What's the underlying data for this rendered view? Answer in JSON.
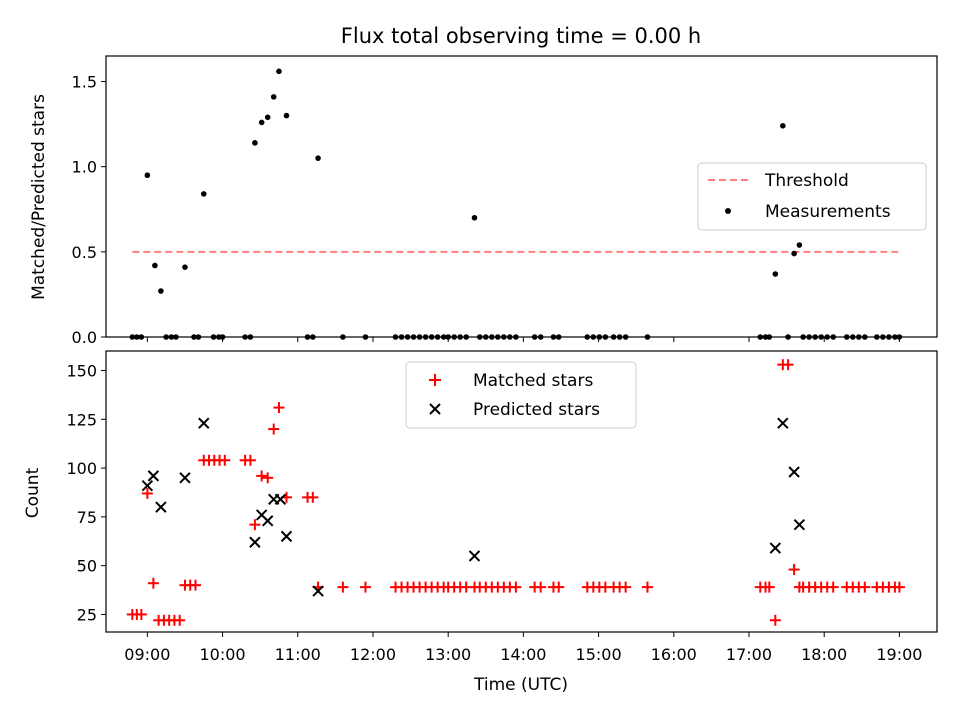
{
  "chart_data": [
    {
      "type": "scatter",
      "title": "Flux total observing time = 0.00 h",
      "xlabel": "",
      "ylabel": "Matched/Predicted stars",
      "xlim": [
        8.45,
        19.5
      ],
      "ylim": [
        0,
        1.65
      ],
      "yticks": [
        0.0,
        0.5,
        1.0,
        1.5
      ],
      "ytick_labels": [
        "0.0",
        "0.5",
        "1.0",
        "1.5"
      ],
      "grid": false,
      "legend_position": "center-right",
      "threshold": {
        "name": "Threshold",
        "y": 0.5,
        "x_range": [
          8.8,
          19.0
        ],
        "color": "#ff7f7f",
        "style": "dashed"
      },
      "series": [
        {
          "name": "Measurements",
          "color": "#000000",
          "marker": "dot",
          "points": [
            [
              8.8,
              0.0
            ],
            [
              8.86,
              0.0
            ],
            [
              8.92,
              0.0
            ],
            [
              9.0,
              0.95
            ],
            [
              9.1,
              0.42
            ],
            [
              9.18,
              0.27
            ],
            [
              9.25,
              0.0
            ],
            [
              9.32,
              0.0
            ],
            [
              9.38,
              0.0
            ],
            [
              9.5,
              0.41
            ],
            [
              9.62,
              0.0
            ],
            [
              9.68,
              0.0
            ],
            [
              9.75,
              0.84
            ],
            [
              9.88,
              0.0
            ],
            [
              9.95,
              0.0
            ],
            [
              10.0,
              0.0
            ],
            [
              10.3,
              0.0
            ],
            [
              10.37,
              0.0
            ],
            [
              10.43,
              1.14
            ],
            [
              10.52,
              1.26
            ],
            [
              10.6,
              1.29
            ],
            [
              10.68,
              1.41
            ],
            [
              10.75,
              1.56
            ],
            [
              10.85,
              1.3
            ],
            [
              11.13,
              0.0
            ],
            [
              11.2,
              0.0
            ],
            [
              11.27,
              1.05
            ],
            [
              11.6,
              0.0
            ],
            [
              11.9,
              0.0
            ],
            [
              12.3,
              0.0
            ],
            [
              12.38,
              0.0
            ],
            [
              12.46,
              0.0
            ],
            [
              12.54,
              0.0
            ],
            [
              12.62,
              0.0
            ],
            [
              12.7,
              0.0
            ],
            [
              12.78,
              0.0
            ],
            [
              12.86,
              0.0
            ],
            [
              12.94,
              0.0
            ],
            [
              13.0,
              0.0
            ],
            [
              13.08,
              0.0
            ],
            [
              13.16,
              0.0
            ],
            [
              13.24,
              0.0
            ],
            [
              13.35,
              0.7
            ],
            [
              13.42,
              0.0
            ],
            [
              13.5,
              0.0
            ],
            [
              13.58,
              0.0
            ],
            [
              13.66,
              0.0
            ],
            [
              13.74,
              0.0
            ],
            [
              13.82,
              0.0
            ],
            [
              13.9,
              0.0
            ],
            [
              14.15,
              0.0
            ],
            [
              14.23,
              0.0
            ],
            [
              14.4,
              0.0
            ],
            [
              14.47,
              0.0
            ],
            [
              14.85,
              0.0
            ],
            [
              14.93,
              0.0
            ],
            [
              15.01,
              0.0
            ],
            [
              15.09,
              0.0
            ],
            [
              15.2,
              0.0
            ],
            [
              15.28,
              0.0
            ],
            [
              15.36,
              0.0
            ],
            [
              15.65,
              0.0
            ],
            [
              17.15,
              0.0
            ],
            [
              17.22,
              0.0
            ],
            [
              17.27,
              0.0
            ],
            [
              17.35,
              0.37
            ],
            [
              17.45,
              1.24
            ],
            [
              17.52,
              0.0
            ],
            [
              17.6,
              0.49
            ],
            [
              17.67,
              0.54
            ],
            [
              17.72,
              0.0
            ],
            [
              17.8,
              0.0
            ],
            [
              17.88,
              0.0
            ],
            [
              17.96,
              0.0
            ],
            [
              18.04,
              0.0
            ],
            [
              18.12,
              0.0
            ],
            [
              18.3,
              0.0
            ],
            [
              18.38,
              0.0
            ],
            [
              18.46,
              0.0
            ],
            [
              18.54,
              0.0
            ],
            [
              18.7,
              0.0
            ],
            [
              18.78,
              0.0
            ],
            [
              18.86,
              0.0
            ],
            [
              18.94,
              0.0
            ],
            [
              19.0,
              0.0
            ]
          ]
        }
      ]
    },
    {
      "type": "scatter",
      "title": "",
      "xlabel": "Time (UTC)",
      "ylabel": "Count",
      "xlim": [
        8.45,
        19.5
      ],
      "ylim": [
        16,
        160
      ],
      "xticks": [
        9,
        10,
        11,
        12,
        13,
        14,
        15,
        16,
        17,
        18,
        19
      ],
      "xtick_labels": [
        "09:00",
        "10:00",
        "11:00",
        "12:00",
        "13:00",
        "14:00",
        "15:00",
        "16:00",
        "17:00",
        "18:00",
        "19:00"
      ],
      "yticks": [
        25,
        50,
        75,
        100,
        125,
        150
      ],
      "ytick_labels": [
        "25",
        "50",
        "75",
        "100",
        "125",
        "150"
      ],
      "grid": false,
      "legend_position": "upper-center",
      "series": [
        {
          "name": "Matched stars",
          "color": "#ff0000",
          "marker": "plus",
          "points": [
            [
              8.8,
              25
            ],
            [
              8.86,
              25
            ],
            [
              8.92,
              25
            ],
            [
              9.0,
              87
            ],
            [
              9.08,
              41
            ],
            [
              9.15,
              22
            ],
            [
              9.22,
              22
            ],
            [
              9.29,
              22
            ],
            [
              9.36,
              22
            ],
            [
              9.43,
              22
            ],
            [
              9.5,
              40
            ],
            [
              9.57,
              40
            ],
            [
              9.64,
              40
            ],
            [
              9.75,
              104
            ],
            [
              9.82,
              104
            ],
            [
              9.89,
              104
            ],
            [
              9.96,
              104
            ],
            [
              10.03,
              104
            ],
            [
              10.3,
              104
            ],
            [
              10.37,
              104
            ],
            [
              10.43,
              71
            ],
            [
              10.52,
              96
            ],
            [
              10.6,
              95
            ],
            [
              10.68,
              120
            ],
            [
              10.75,
              131
            ],
            [
              10.85,
              85
            ],
            [
              11.13,
              85
            ],
            [
              11.2,
              85
            ],
            [
              11.27,
              39
            ],
            [
              11.6,
              39
            ],
            [
              11.9,
              39
            ],
            [
              12.3,
              39
            ],
            [
              12.38,
              39
            ],
            [
              12.46,
              39
            ],
            [
              12.54,
              39
            ],
            [
              12.62,
              39
            ],
            [
              12.7,
              39
            ],
            [
              12.78,
              39
            ],
            [
              12.86,
              39
            ],
            [
              12.94,
              39
            ],
            [
              13.0,
              39
            ],
            [
              13.08,
              39
            ],
            [
              13.16,
              39
            ],
            [
              13.24,
              39
            ],
            [
              13.35,
              39
            ],
            [
              13.42,
              39
            ],
            [
              13.5,
              39
            ],
            [
              13.58,
              39
            ],
            [
              13.66,
              39
            ],
            [
              13.74,
              39
            ],
            [
              13.82,
              39
            ],
            [
              13.9,
              39
            ],
            [
              14.15,
              39
            ],
            [
              14.23,
              39
            ],
            [
              14.4,
              39
            ],
            [
              14.47,
              39
            ],
            [
              14.85,
              39
            ],
            [
              14.93,
              39
            ],
            [
              15.01,
              39
            ],
            [
              15.09,
              39
            ],
            [
              15.2,
              39
            ],
            [
              15.28,
              39
            ],
            [
              15.36,
              39
            ],
            [
              15.65,
              39
            ],
            [
              17.15,
              39
            ],
            [
              17.22,
              39
            ],
            [
              17.27,
              39
            ],
            [
              17.35,
              22
            ],
            [
              17.45,
              153
            ],
            [
              17.52,
              153
            ],
            [
              17.6,
              48
            ],
            [
              17.67,
              39
            ],
            [
              17.72,
              39
            ],
            [
              17.8,
              39
            ],
            [
              17.88,
              39
            ],
            [
              17.96,
              39
            ],
            [
              18.04,
              39
            ],
            [
              18.12,
              39
            ],
            [
              18.3,
              39
            ],
            [
              18.38,
              39
            ],
            [
              18.46,
              39
            ],
            [
              18.54,
              39
            ],
            [
              18.7,
              39
            ],
            [
              18.78,
              39
            ],
            [
              18.86,
              39
            ],
            [
              18.94,
              39
            ],
            [
              19.0,
              39
            ]
          ]
        },
        {
          "name": "Predicted stars",
          "color": "#000000",
          "marker": "x",
          "points": [
            [
              9.0,
              91
            ],
            [
              9.08,
              96
            ],
            [
              9.18,
              80
            ],
            [
              9.5,
              95
            ],
            [
              9.75,
              123
            ],
            [
              10.43,
              62
            ],
            [
              10.52,
              76
            ],
            [
              10.6,
              73
            ],
            [
              10.68,
              84
            ],
            [
              10.77,
              84
            ],
            [
              10.85,
              65
            ],
            [
              11.27,
              37
            ],
            [
              13.35,
              55
            ],
            [
              17.35,
              59
            ],
            [
              17.45,
              123
            ],
            [
              17.6,
              98
            ],
            [
              17.67,
              71
            ]
          ]
        }
      ]
    }
  ]
}
